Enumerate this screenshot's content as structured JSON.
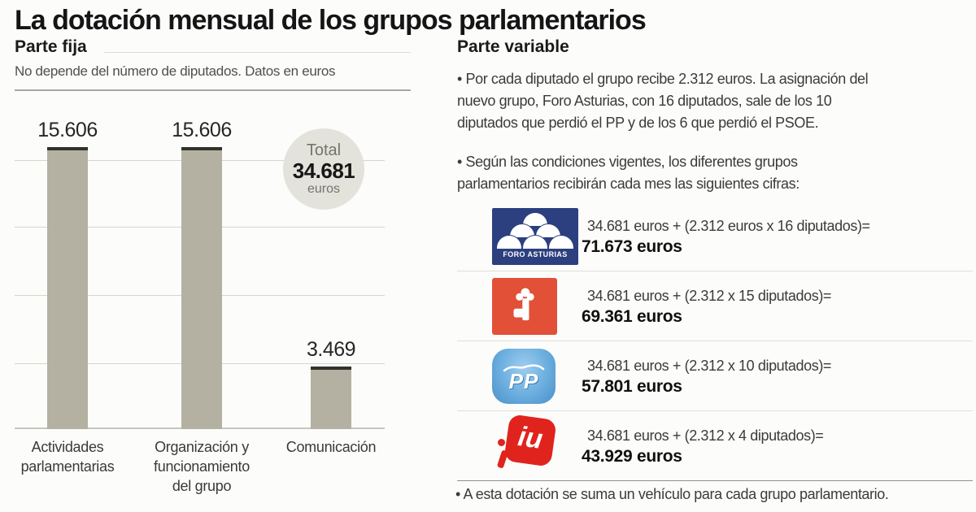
{
  "title": "La dotación mensual de los grupos parlamentarios",
  "fixed_part": {
    "heading": "Parte fija",
    "subtitle": "No depende del número de diputados. Datos en euros"
  },
  "chart_data": {
    "type": "bar",
    "title": "Parte fija",
    "subtitle": "No depende del número de diputados. Datos en euros",
    "categories": [
      "Actividades\nparlamentarias",
      "Organización y\nfuncionamiento\ndel grupo",
      "Comunicación"
    ],
    "values": [
      15606,
      15606,
      3469
    ],
    "value_labels": [
      "15.606",
      "15.606",
      "3.469"
    ],
    "unit": "euros",
    "ylim": [
      0,
      18300
    ],
    "grid": true,
    "legend": "none",
    "bar_color": "#b4b1a2",
    "cap_color": "#32322b",
    "total": {
      "label": "Total",
      "value": "34.681",
      "unit": "euros"
    }
  },
  "variable_part": {
    "heading": "Parte variable",
    "bullets": [
      "• Por cada diputado el grupo recibe 2.312 euros. La asignación del\nnuevo grupo, Foro Asturias, con 16 diputados, sale de los 10\ndiputados que perdió el PP y de los 6 que perdió el PSOE.",
      "• Según las condiciones vigentes, los diferentes grupos\nparlamentarios recibirán cada mes las siguientes cifras:"
    ],
    "rows": [
      {
        "party": "Foro Asturias",
        "formula": "34.681 euros + (2.312 euros x 16 diputados)=",
        "result": "71.673 euros"
      },
      {
        "party": "PSOE",
        "formula": "34.681 euros + (2.312 x 15 diputados)=",
        "result": "69.361 euros"
      },
      {
        "party": "PP",
        "formula": "34.681 euros + (2.312 x 10 diputados)=",
        "result": "57.801 euros"
      },
      {
        "party": "IU",
        "formula": "34.681 euros + (2.312 x 4 diputados)=",
        "result": "43.929 euros"
      }
    ],
    "footnote": "• A esta dotación se suma un vehículo para cada grupo parlamentario.",
    "logos": {
      "foro_text": "FORO ASTURIAS",
      "pp_text": "PP",
      "iu_text": "iu"
    }
  },
  "colors": {
    "bar": "#b4b1a2",
    "bar_cap": "#32322b",
    "foro_navy": "#2c3f7e",
    "psoe_red": "#e25038",
    "pp_blue": "#6aadde",
    "iu_red": "#e0241d",
    "total_circle": "#e3e2db"
  }
}
